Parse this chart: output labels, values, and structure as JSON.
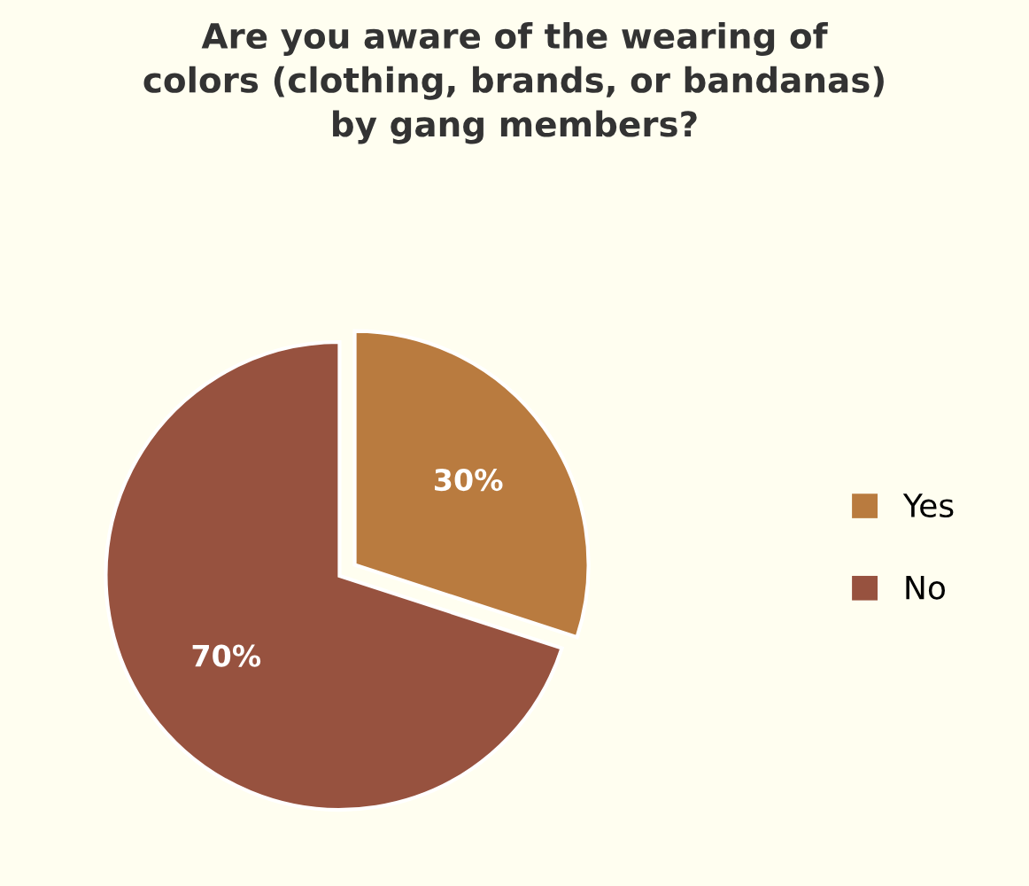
{
  "chart_data": {
    "type": "pie",
    "title": "Are you aware of the wearing of\ncolors (clothing, brands, or bandanas)\nby gang members?",
    "categories": [
      "Yes",
      "No"
    ],
    "values": [
      30,
      70
    ],
    "colors": [
      "#b97b3f",
      "#97523f"
    ],
    "value_labels": [
      "30%",
      "70%"
    ],
    "legend": "right"
  }
}
